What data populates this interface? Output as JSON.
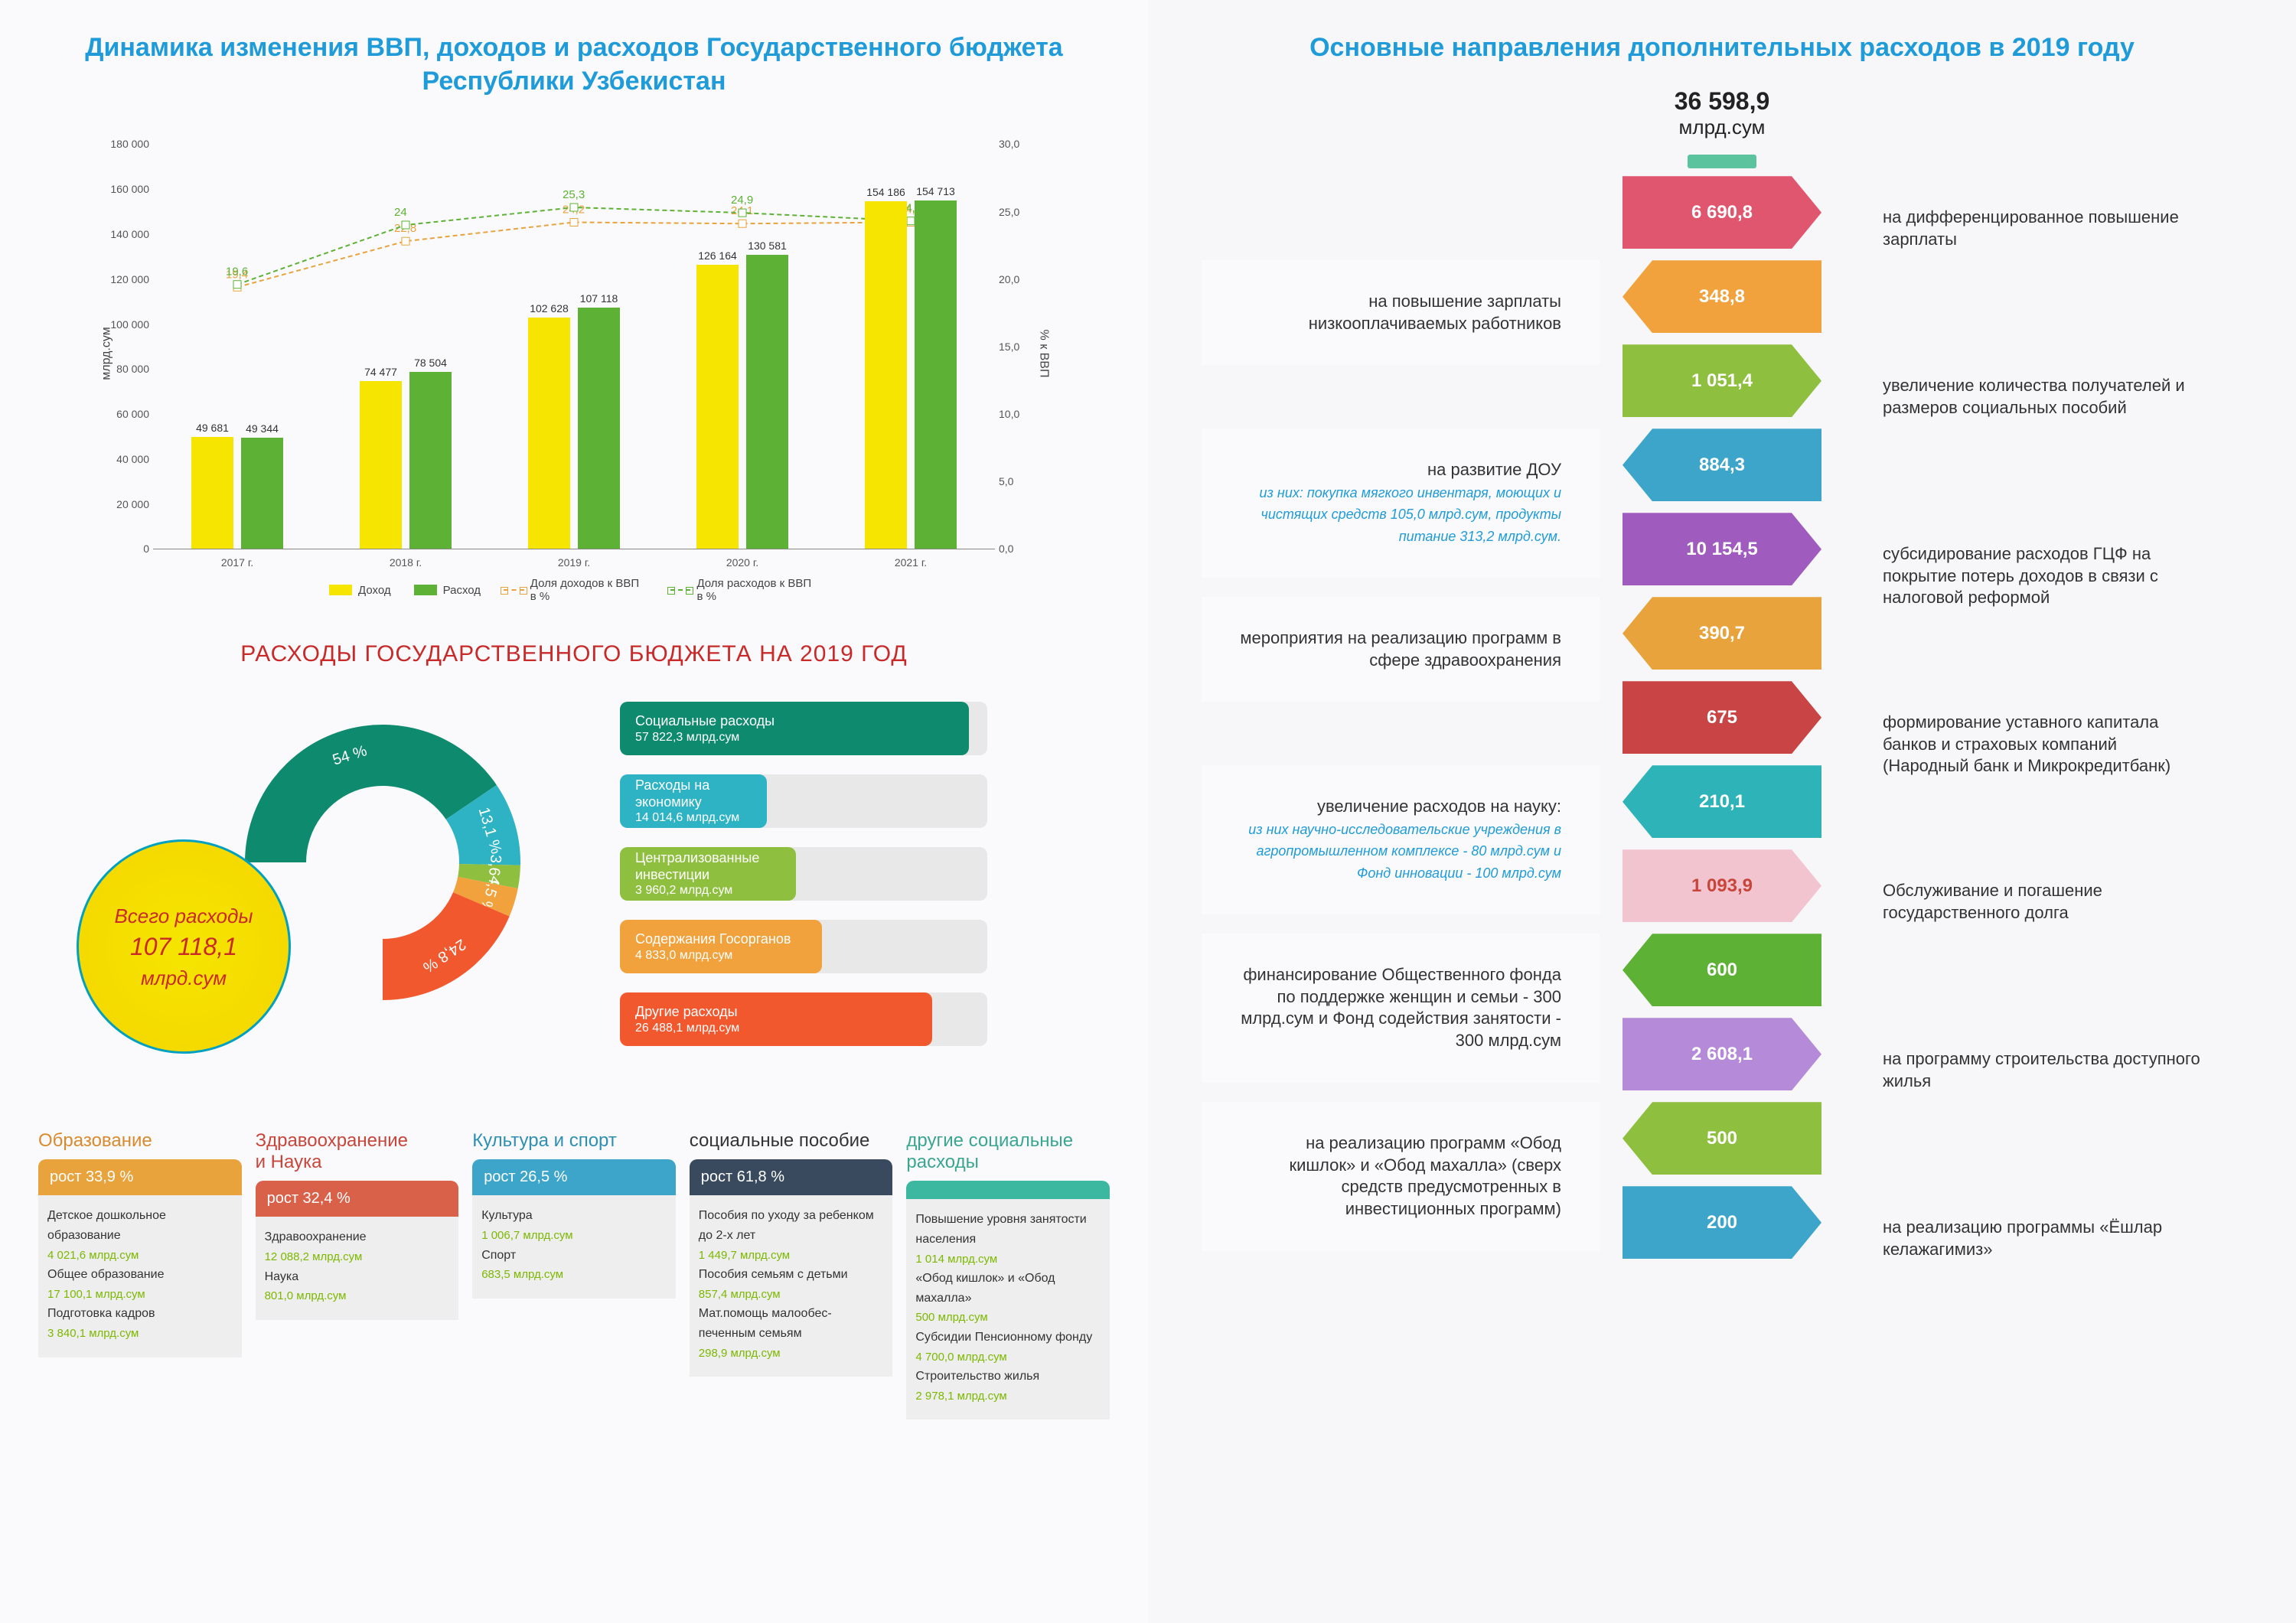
{
  "left_title": "Динамика изменения ВВП, доходов и расходов\nГосударственного бюджета Республики Узбекистан",
  "right_title": "Основные направления дополнительных расходов\nв 2019 году",
  "bar_chart": {
    "y_left_max": 180000,
    "y_left_step": 20000,
    "y_left_label": "млрд.сум",
    "y_right_max": 30.0,
    "y_right_step": 5.0,
    "y_right_label": "% к ВВП",
    "categories": [
      "2017 г.",
      "2018 г.",
      "2019 г.",
      "2020 г.",
      "2021 г."
    ],
    "income": [
      49681,
      74477,
      102628,
      126164,
      154186
    ],
    "expense": [
      49344,
      78504,
      107118,
      130581,
      154713
    ],
    "income_pct": [
      19.4,
      22.8,
      24.2,
      24.1,
      24.2
    ],
    "expense_pct": [
      19.6,
      24.0,
      25.3,
      24.9,
      24.3
    ],
    "colors": {
      "income": "#f5e500",
      "expense": "#5db135",
      "income_pct": "#e8a33d",
      "expense_pct": "#5db135"
    },
    "legend": [
      "Доход",
      "Расход",
      "Доля доходов к ВВП в %",
      "Доля расходов к ВВП в %"
    ]
  },
  "donut": {
    "subtitle": "РАСХОДЫ ГОСУДАРСТВЕННОГО БЮДЖЕТА НА 2019 ГОД",
    "total_label": "Всего расходы",
    "total_value": "107 118,1",
    "total_unit": "млрд.сум",
    "slices": [
      {
        "pct": "54 %",
        "label": "Социальные расходы",
        "value": "57 822,3 млрд.сум",
        "color": "#0e8a6e",
        "barfill": 95
      },
      {
        "pct": "13,1 %",
        "label": "Расходы на экономику",
        "value": "14 014,6 млрд.сум",
        "color": "#2eb3c4",
        "barfill": 40
      },
      {
        "pct": "3,6 %",
        "label": "Централизованные инвестиции",
        "value": "3 960,2 млрд.сум",
        "color": "#8fbf3f",
        "barfill": 48
      },
      {
        "pct": "4,5 %",
        "label": "Содержания Госорганов",
        "value": "4 833,0 млрд.сум",
        "color": "#f2a23c",
        "barfill": 55
      },
      {
        "pct": "24,8 %",
        "label": "Другие расходы",
        "value": "26 488,1 млрд.сум",
        "color": "#f2582e",
        "barfill": 85
      }
    ]
  },
  "bottom": [
    {
      "title": "Образование",
      "title_color": "#d98a2e",
      "growth": "рост 33,9 %",
      "tab_color": "#e8a33d",
      "items": [
        {
          "n": "Детское дошкольное образование",
          "v": "4 021,6 млрд.сум"
        },
        {
          "n": "Общее образование",
          "v": "17 100,1 млрд.сум"
        },
        {
          "n": "Подготовка кадров",
          "v": "3 840,1 млрд.сум"
        }
      ]
    },
    {
      "title": "Здравоохранение\nи Наука",
      "title_color": "#c8453a",
      "growth": "рост 32,4 %",
      "tab_color": "#d9614a",
      "items": [
        {
          "n": "Здравоохранение",
          "v": "12 088,2 млрд.сум"
        },
        {
          "n": "Наука",
          "v": "801,0 млрд.сум"
        }
      ]
    },
    {
      "title": "Культура и спорт",
      "title_color": "#2e8fb5",
      "growth": "рост 26,5 %",
      "tab_color": "#3da5c9",
      "items": [
        {
          "n": "Культура",
          "v": "1 006,7 млрд.сум"
        },
        {
          "n": "Спорт",
          "v": "683,5 млрд.сум"
        }
      ]
    },
    {
      "title": "социальные пособие",
      "title_color": "#333",
      "growth": "рост 61,8 %",
      "tab_color": "#3a4a5e",
      "items": [
        {
          "n": "Пособия по уходу за ребенком до 2-х лет",
          "v": "1 449,7 млрд.сум"
        },
        {
          "n": "Пособия семьям с детьми",
          "v": "857,4 млрд.сум"
        },
        {
          "n": "Мат.помощь малообес-печенным семьям",
          "v": "298,9 млрд.сум"
        }
      ]
    },
    {
      "title": "другие социальные\nрасходы",
      "title_color": "#3aa591",
      "growth": "",
      "tab_color": "#3db8a0",
      "items": [
        {
          "n": "Повышение уровня занятости населения",
          "v": "1 014 млрд.сум"
        },
        {
          "n": "«Обод кишлок» и «Обод махалла»",
          "v": "500 млрд.сум"
        },
        {
          "n": "Субсидии Пенсионному фонду",
          "v": "4 700,0 млрд.сум"
        },
        {
          "n": "Строительство жилья",
          "v": "2 978,1 млрд.сум"
        }
      ]
    }
  ],
  "right_total": {
    "value": "36 598,9",
    "unit": "млрд.сум"
  },
  "arrows": [
    {
      "value": "6 690,8",
      "color": "#e0566f",
      "dir": "ltr",
      "side": "right",
      "text": "на дифференцированное повышение зарплаты"
    },
    {
      "value": "348,8",
      "color": "#f2a23c",
      "dir": "rtl",
      "side": "left",
      "text": "на повышение зарплаты низкооплачиваемых работников"
    },
    {
      "value": "1 051,4",
      "color": "#8fbf3f",
      "dir": "ltr",
      "side": "right",
      "text": "увеличение количества получателей и размеров социальных пособий"
    },
    {
      "value": "884,3",
      "color": "#3da5c9",
      "dir": "rtl",
      "side": "left",
      "text": "на развитие ДОУ",
      "sub": "из них: покупка мягкого инвентаря, моющих и чистящих средств 105,0 млрд.сум, продукты питание 313,2 млрд.сум."
    },
    {
      "value": "10 154,5",
      "color": "#a05bbf",
      "dir": "ltr",
      "side": "right",
      "text": "субсидирование расходов ГЦФ на покрытие потерь доходов в связи с налоговой реформой"
    },
    {
      "value": "390,7",
      "color": "#e8a33d",
      "dir": "rtl",
      "side": "left",
      "text": "мероприятия на реализацию программ в сфере здравоохранения"
    },
    {
      "value": "675",
      "color": "#c94545",
      "dir": "ltr",
      "side": "right",
      "text": "формирование уставного капитала банков и страховых компаний (Народный банк и Микрокредитбанк)"
    },
    {
      "value": "210,1",
      "color": "#2eb3b8",
      "dir": "rtl",
      "side": "left",
      "text": "увеличение расходов на науку:",
      "sub": "из них научно-исследовательские учреждения в агропромышленном комплексе - 80 млрд.сум и Фонд инновации - 100 млрд.сум"
    },
    {
      "value": "1 093,9",
      "color": "#f2c4cf",
      "dir": "ltr",
      "side": "right",
      "text": "Обслуживание и погашение государственного долга",
      "textcolor": "#c8453a"
    },
    {
      "value": "600",
      "color": "#5db135",
      "dir": "rtl",
      "side": "left",
      "text": "финансирование Общественного фонда по поддержке женщин и семьи - 300 млрд.сум и Фонд содействия занятости - 300 млрд.сум"
    },
    {
      "value": "2 608,1",
      "color": "#b48ad9",
      "dir": "ltr",
      "side": "right",
      "text": "на программу строительства доступного жилья"
    },
    {
      "value": "500",
      "color": "#8fbf3f",
      "dir": "rtl",
      "side": "left",
      "text": "на реализацию программ «Обод кишлок» и «Обод махалла» (сверх средств предусмотренных в инвестиционных программ)"
    },
    {
      "value": "200",
      "color": "#3da5c9",
      "dir": "ltr",
      "side": "right",
      "text": "на реализацию программы «Ёшлар келажагимиз»"
    }
  ]
}
